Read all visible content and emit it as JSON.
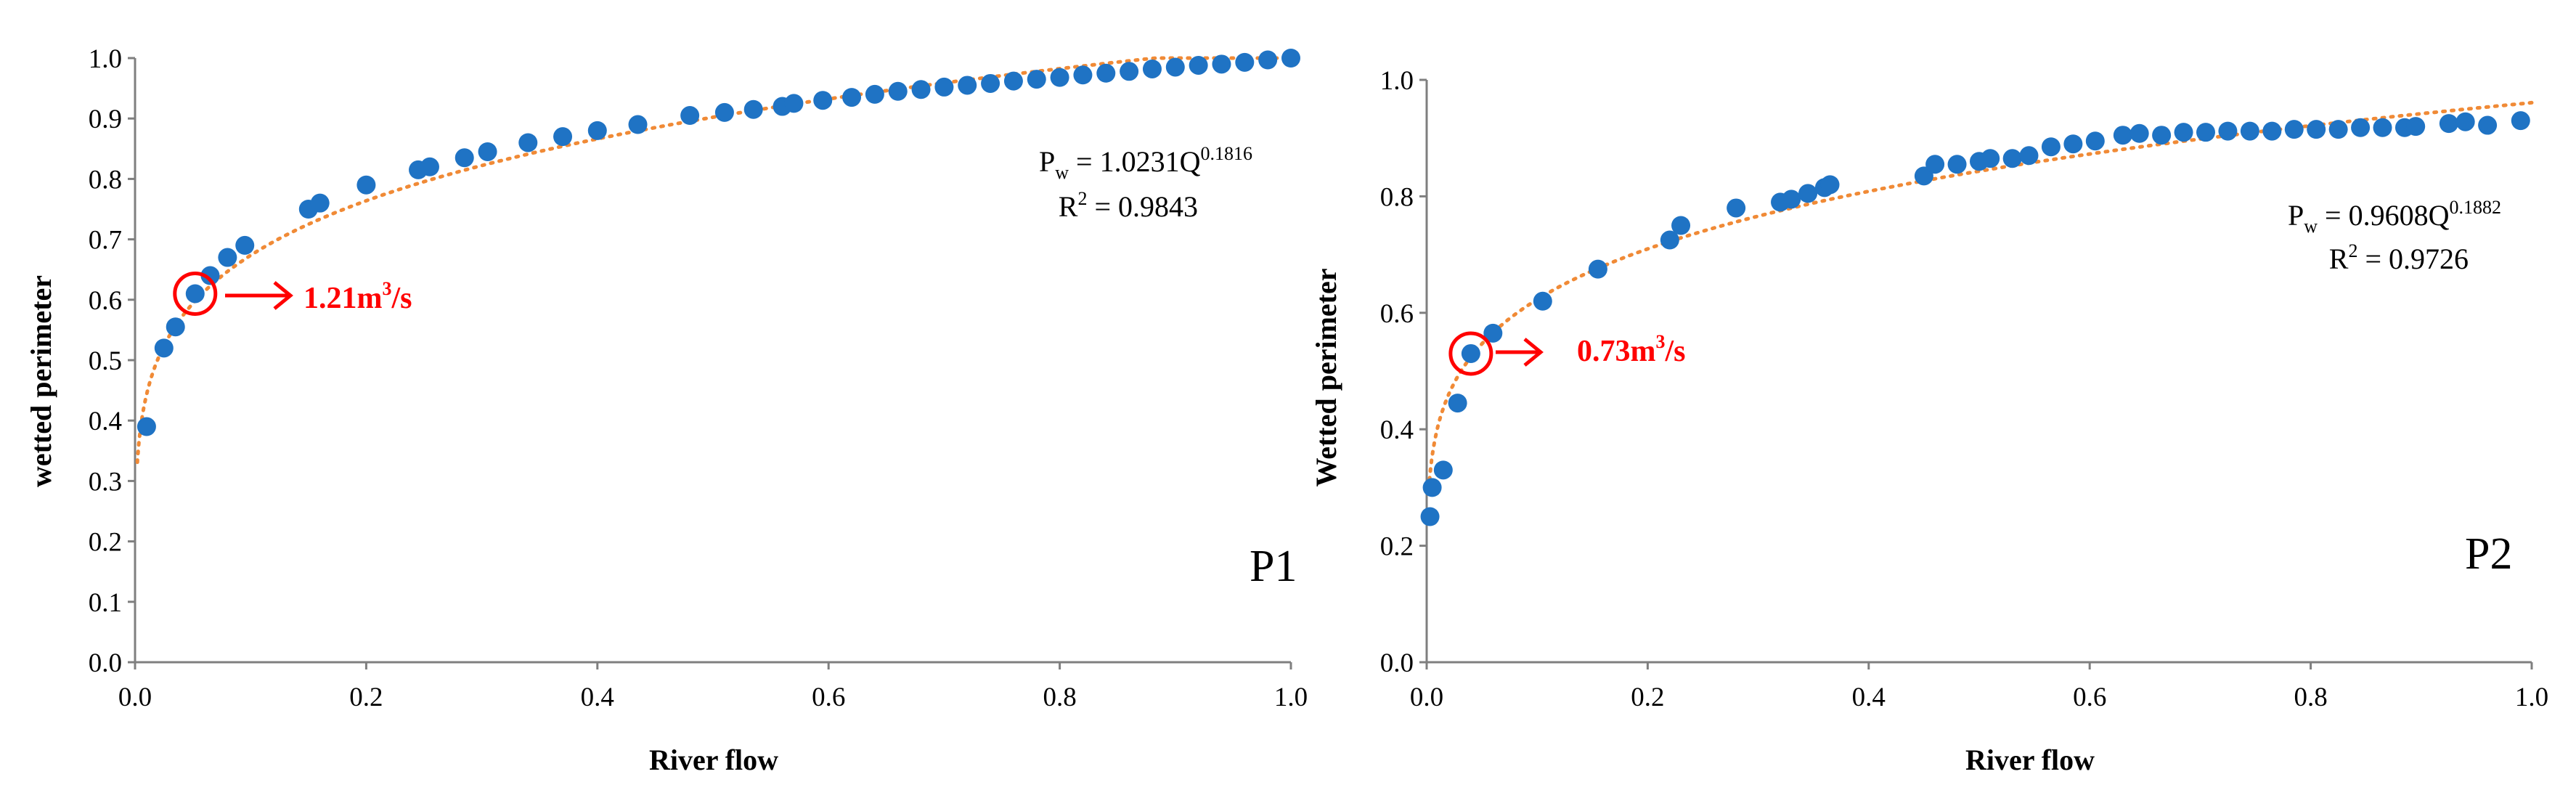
{
  "chart_data": [
    {
      "type": "scatter",
      "panel_label": "P1",
      "xlabel": "River flow",
      "ylabel": "wetted perimeter",
      "xlim": [
        0,
        1
      ],
      "ylim": [
        0,
        1
      ],
      "xticks": [
        "0.0",
        "0.2",
        "0.4",
        "0.6",
        "0.8",
        "1.0"
      ],
      "yticks": [
        "0.0",
        "0.1",
        "0.2",
        "0.3",
        "0.4",
        "0.5",
        "0.6",
        "0.7",
        "0.8",
        "0.9",
        "1.0"
      ],
      "grid": false,
      "marker_color": "#1f73c4",
      "trend_color": "#f08a36",
      "highlight_color": "#ff0000",
      "trendline": {
        "type": "power",
        "coefficient": 1.0231,
        "exponent": 0.1816
      },
      "equation": {
        "base": "P",
        "sub": "w",
        "rhs": " = 1.0231Q",
        "sup": "0.1816"
      },
      "r2": {
        "base": "R",
        "sup": "2",
        "rhs": " = 0.9843"
      },
      "annotation": {
        "text": "1.21m",
        "sup": "3",
        "suffix": "/s",
        "x": 0.052,
        "y": 0.61
      },
      "points": [
        [
          0.01,
          0.39
        ],
        [
          0.025,
          0.52
        ],
        [
          0.035,
          0.555
        ],
        [
          0.052,
          0.61
        ],
        [
          0.065,
          0.64
        ],
        [
          0.08,
          0.67
        ],
        [
          0.095,
          0.69
        ],
        [
          0.15,
          0.75
        ],
        [
          0.16,
          0.76
        ],
        [
          0.2,
          0.79
        ],
        [
          0.245,
          0.815
        ],
        [
          0.255,
          0.82
        ],
        [
          0.285,
          0.835
        ],
        [
          0.305,
          0.845
        ],
        [
          0.34,
          0.86
        ],
        [
          0.37,
          0.87
        ],
        [
          0.4,
          0.88
        ],
        [
          0.435,
          0.89
        ],
        [
          0.48,
          0.905
        ],
        [
          0.51,
          0.91
        ],
        [
          0.535,
          0.915
        ],
        [
          0.56,
          0.92
        ],
        [
          0.57,
          0.925
        ],
        [
          0.595,
          0.93
        ],
        [
          0.62,
          0.935
        ],
        [
          0.64,
          0.94
        ],
        [
          0.66,
          0.945
        ],
        [
          0.68,
          0.948
        ],
        [
          0.7,
          0.952
        ],
        [
          0.72,
          0.955
        ],
        [
          0.74,
          0.958
        ],
        [
          0.76,
          0.962
        ],
        [
          0.78,
          0.965
        ],
        [
          0.8,
          0.968
        ],
        [
          0.82,
          0.972
        ],
        [
          0.84,
          0.975
        ],
        [
          0.86,
          0.978
        ],
        [
          0.88,
          0.982
        ],
        [
          0.9,
          0.985
        ],
        [
          0.92,
          0.988
        ],
        [
          0.94,
          0.99
        ],
        [
          0.96,
          0.993
        ],
        [
          0.98,
          0.997
        ],
        [
          1.0,
          1.0
        ]
      ]
    },
    {
      "type": "scatter",
      "panel_label": "P2",
      "xlabel": "River flow",
      "ylabel": "Wetted perimeter",
      "xlim": [
        0,
        1
      ],
      "ylim": [
        0,
        1
      ],
      "xticks": [
        "0.0",
        "0.2",
        "0.4",
        "0.6",
        "0.8",
        "1.0"
      ],
      "yticks": [
        "0.0",
        "0.2",
        "0.4",
        "0.6",
        "0.8",
        "1.0"
      ],
      "grid": false,
      "marker_color": "#1f73c4",
      "trend_color": "#f08a36",
      "highlight_color": "#ff0000",
      "trendline": {
        "type": "power",
        "coefficient": 0.9608,
        "exponent": 0.1882
      },
      "equation": {
        "base": "P",
        "sub": "w",
        "rhs": " = 0.9608Q",
        "sup": "0.1882"
      },
      "r2": {
        "base": "R",
        "sup": "2",
        "rhs": " = 0.9726"
      },
      "annotation": {
        "text": "0.73m",
        "sup": "3",
        "suffix": "/s",
        "x": 0.04,
        "y": 0.53
      },
      "points": [
        [
          0.003,
          0.25
        ],
        [
          0.005,
          0.3
        ],
        [
          0.015,
          0.33
        ],
        [
          0.028,
          0.445
        ],
        [
          0.04,
          0.53
        ],
        [
          0.06,
          0.565
        ],
        [
          0.105,
          0.62
        ],
        [
          0.155,
          0.675
        ],
        [
          0.22,
          0.725
        ],
        [
          0.23,
          0.75
        ],
        [
          0.28,
          0.78
        ],
        [
          0.32,
          0.79
        ],
        [
          0.33,
          0.795
        ],
        [
          0.345,
          0.805
        ],
        [
          0.36,
          0.815
        ],
        [
          0.365,
          0.82
        ],
        [
          0.45,
          0.835
        ],
        [
          0.46,
          0.855
        ],
        [
          0.48,
          0.855
        ],
        [
          0.5,
          0.86
        ],
        [
          0.51,
          0.865
        ],
        [
          0.53,
          0.865
        ],
        [
          0.545,
          0.87
        ],
        [
          0.565,
          0.885
        ],
        [
          0.585,
          0.89
        ],
        [
          0.605,
          0.895
        ],
        [
          0.63,
          0.905
        ],
        [
          0.645,
          0.908
        ],
        [
          0.665,
          0.905
        ],
        [
          0.685,
          0.91
        ],
        [
          0.705,
          0.91
        ],
        [
          0.725,
          0.912
        ],
        [
          0.745,
          0.912
        ],
        [
          0.765,
          0.912
        ],
        [
          0.785,
          0.915
        ],
        [
          0.805,
          0.915
        ],
        [
          0.825,
          0.915
        ],
        [
          0.845,
          0.918
        ],
        [
          0.865,
          0.918
        ],
        [
          0.885,
          0.918
        ],
        [
          0.895,
          0.92
        ],
        [
          0.925,
          0.925
        ],
        [
          0.94,
          0.928
        ],
        [
          0.96,
          0.922
        ],
        [
          0.99,
          0.93
        ]
      ]
    }
  ]
}
